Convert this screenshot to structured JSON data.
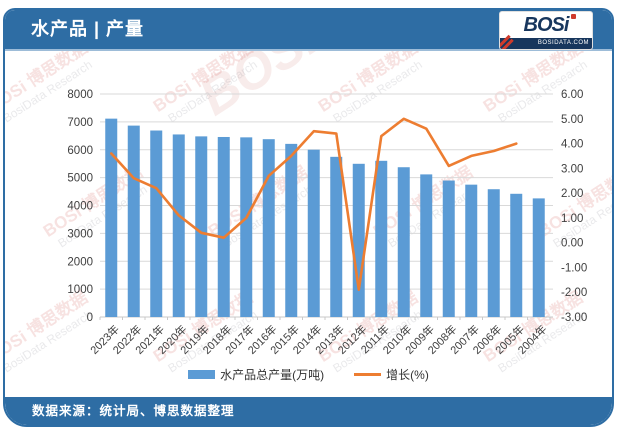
{
  "header": {
    "title": "水产品 | 产量",
    "logo": {
      "brand": "BOSi",
      "sub": "BOSIDATA.COM"
    }
  },
  "footer": {
    "source": "数据来源：统计局、博思数据整理"
  },
  "watermark": {
    "brand": "BOSi",
    "cn": "博思数据",
    "en": "BosiData Research"
  },
  "colors": {
    "band_blue": "#2e6da4",
    "bar_blue": "#5b9bd5",
    "line_orange": "#ed7d31",
    "gridline": "#d9d9d9",
    "axis_text": "#3f3f3f",
    "logo_navy": "#17365d",
    "logo_red": "#cf3a2b"
  },
  "chart_data": {
    "type": "bar+line",
    "title": "",
    "categories": [
      "2023年",
      "2022年",
      "2021年",
      "2020年",
      "2019年",
      "2018年",
      "2017年",
      "2016年",
      "2015年",
      "2014年",
      "2013年",
      "2012年",
      "2011年",
      "2010年",
      "2009年",
      "2008年",
      "2007年",
      "2006年",
      "2005年",
      "2004年"
    ],
    "series": [
      {
        "name": "水产品总产量(万吨)",
        "type": "bar",
        "axis": "left",
        "color": "#5b9bd5",
        "values": [
          7116,
          6866,
          6690,
          6549,
          6480,
          6458,
          6445,
          6379,
          6211,
          6002,
          5746,
          5496,
          5603,
          5373,
          5116,
          4896,
          4748,
          4584,
          4420,
          4255
        ]
      },
      {
        "name": "增长(%)",
        "type": "line",
        "axis": "right",
        "color": "#ed7d31",
        "values": [
          3.6,
          2.6,
          2.2,
          1.1,
          0.4,
          0.2,
          1.0,
          2.7,
          3.5,
          4.5,
          4.4,
          -1.9,
          4.3,
          5.0,
          4.6,
          3.1,
          3.5,
          3.7,
          4.0,
          null
        ]
      }
    ],
    "left_axis": {
      "min": 0,
      "max": 8000,
      "step": 1000,
      "labels": [
        "8000",
        "7000",
        "6000",
        "5000",
        "4000",
        "3000",
        "2000",
        "1000",
        "0"
      ]
    },
    "right_axis": {
      "min": -3,
      "max": 6,
      "step": 1,
      "labels": [
        "6.00",
        "5.00",
        "4.00",
        "3.00",
        "2.00",
        "1.00",
        "0.00",
        "-1.00",
        "-2.00",
        "-3.00"
      ]
    },
    "grid": true,
    "legend_position": "bottom",
    "x_label_rotation": -45
  }
}
